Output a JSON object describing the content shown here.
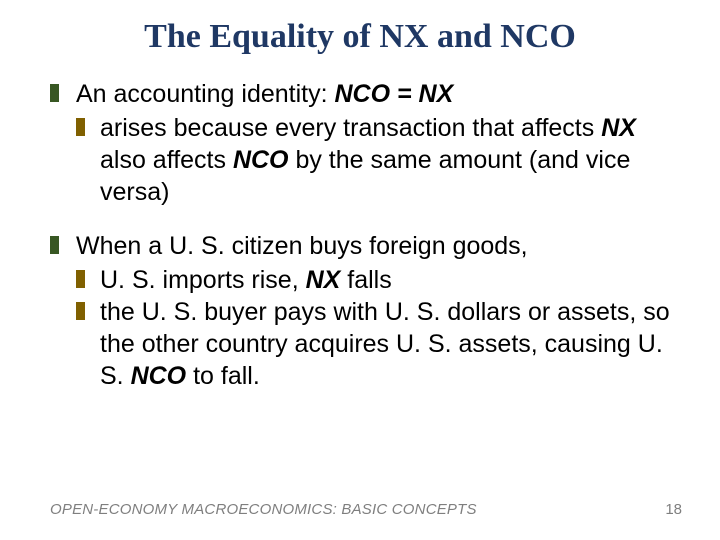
{
  "colors": {
    "title": "#1f3864",
    "bullet_l1": "#385723",
    "bullet_l2": "#806000",
    "text": "#000000",
    "footer": "#7f7f7f",
    "background": "#ffffff"
  },
  "typography": {
    "title_family": "Book Antiqua / Palatino serif",
    "title_size_pt": 26,
    "title_weight": "bold",
    "body_family": "Arial",
    "body_size_pt": 19,
    "footer_size_pt": 11
  },
  "title": "The Equality of NX and NCO",
  "points": [
    {
      "runs": [
        {
          "t": "An accounting identity:  "
        },
        {
          "t": "NCO = NX",
          "bi": true
        }
      ],
      "sub": [
        {
          "runs": [
            {
              "t": "arises because every transaction that affects "
            },
            {
              "t": "NX",
              "bi": true
            },
            {
              "t": " also affects "
            },
            {
              "t": "NCO",
              "bi": true
            },
            {
              "t": " by the same amount (and vice versa)"
            }
          ]
        }
      ]
    },
    {
      "runs": [
        {
          "t": "When a U. S. citizen buys foreign goods,"
        }
      ],
      "sub": [
        {
          "runs": [
            {
              "t": "U. S. imports rise, "
            },
            {
              "t": "NX",
              "bi": true
            },
            {
              "t": " falls"
            }
          ]
        },
        {
          "runs": [
            {
              "t": "the U. S. buyer pays with U. S. dollars or assets, so the other country acquires U. S. assets, causing U. S. "
            },
            {
              "t": "NCO",
              "bi": true
            },
            {
              "t": " to fall."
            }
          ]
        }
      ]
    }
  ],
  "footer": "OPEN-ECONOMY MACROECONOMICS:  BASIC CONCEPTS",
  "page_number": "18"
}
